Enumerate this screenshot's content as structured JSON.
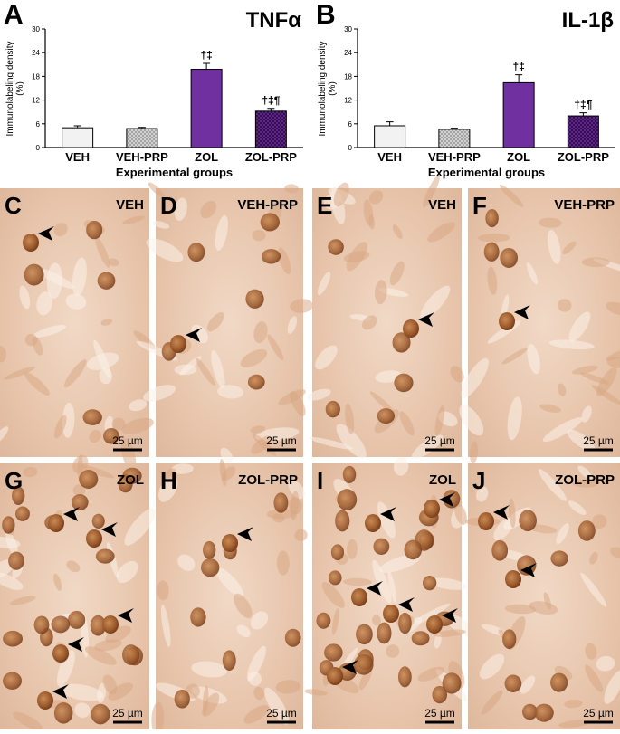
{
  "chart_data": [
    {
      "type": "bar",
      "letter": "A",
      "title": "TNFα",
      "ylabel": [
        "Immunolabeling density",
        "(%)"
      ],
      "xlabel": "Experimental groups",
      "categories": [
        "VEH",
        "VEH-PRP",
        "ZOL",
        "ZOL-PRP"
      ],
      "values": [
        5,
        4.8,
        19.8,
        9.2
      ],
      "errors": [
        0.5,
        0.3,
        1.5,
        0.7
      ],
      "annotations": [
        null,
        null,
        "†‡",
        "†‡¶"
      ],
      "colors": [
        "#f2f2f2",
        "#dcdcdc",
        "#7030a0",
        "#6a2a9a"
      ],
      "hatch": [
        false,
        true,
        false,
        true
      ],
      "ylim": [
        0,
        30
      ],
      "yticks": [
        0,
        6,
        12,
        18,
        24,
        30
      ]
    },
    {
      "type": "bar",
      "letter": "B",
      "title": "IL-1β",
      "ylabel": [
        "Immunolabeling density",
        "(%)"
      ],
      "xlabel": "Experimental groups",
      "categories": [
        "VEH",
        "VEH-PRP",
        "ZOL",
        "ZOL-PRP"
      ],
      "values": [
        5.5,
        4.6,
        16.4,
        8
      ],
      "errors": [
        1,
        0.3,
        2,
        0.8
      ],
      "annotations": [
        null,
        null,
        "†‡",
        "†‡¶"
      ],
      "colors": [
        "#f2f2f2",
        "#dcdcdc",
        "#7030a0",
        "#6a2a9a"
      ],
      "hatch": [
        false,
        true,
        false,
        true
      ],
      "ylim": [
        0,
        30
      ],
      "yticks": [
        0,
        6,
        12,
        18,
        24,
        30
      ]
    }
  ],
  "panels": [
    {
      "letter": "C",
      "label": "VEH",
      "scale": "25 µm"
    },
    {
      "letter": "D",
      "label": "VEH-PRP",
      "scale": "25 µm"
    },
    {
      "letter": "E",
      "label": "VEH",
      "scale": "25 µm"
    },
    {
      "letter": "F",
      "label": "VEH-PRP",
      "scale": "25 µm"
    },
    {
      "letter": "G",
      "label": "ZOL",
      "scale": "25 µm"
    },
    {
      "letter": "H",
      "label": "ZOL-PRP",
      "scale": "25 µm"
    },
    {
      "letter": "I",
      "label": "ZOL",
      "scale": "25 µm"
    },
    {
      "letter": "J",
      "label": "ZOL-PRP",
      "scale": "25 µm"
    }
  ]
}
